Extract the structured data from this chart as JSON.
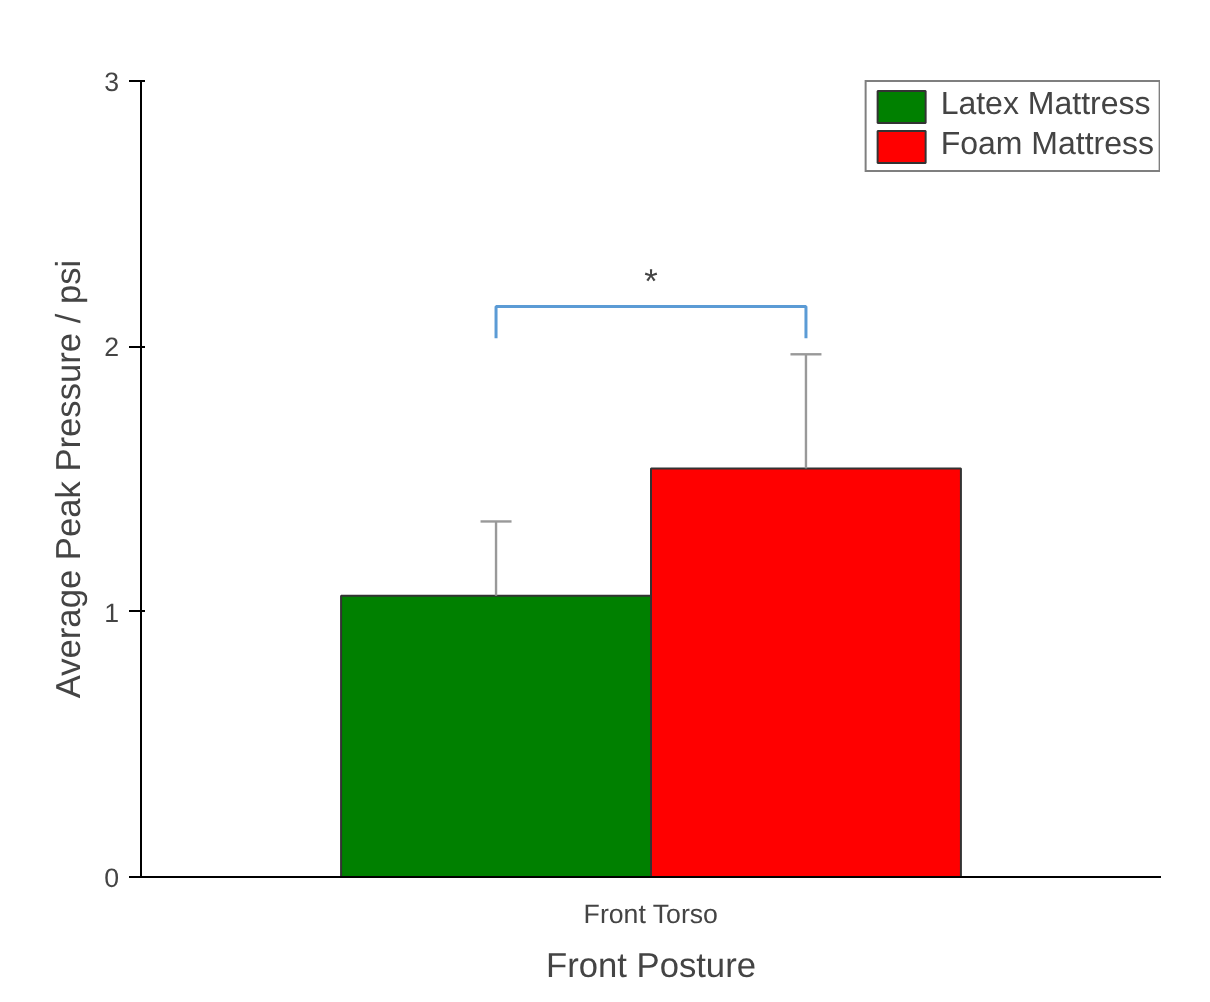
{
  "chart_data": {
    "type": "bar",
    "xlabel": "Front Posture",
    "ylabel": "Average Peak Pressure / psi",
    "categories": [
      "Front Torso"
    ],
    "series": [
      {
        "name": "Latex Mattress",
        "color": "#008000",
        "values": [
          1.06
        ],
        "errors": [
          [
            1.06,
            1.34
          ]
        ]
      },
      {
        "name": "Foam Mattress",
        "color": "#ff0000",
        "values": [
          1.54
        ],
        "errors": [
          [
            1.54,
            1.97
          ]
        ]
      }
    ],
    "ylim": [
      0,
      3
    ],
    "yticks": [
      0,
      1,
      2,
      3
    ],
    "legend": "top right",
    "grid": false,
    "annotations": [
      "*"
    ]
  }
}
